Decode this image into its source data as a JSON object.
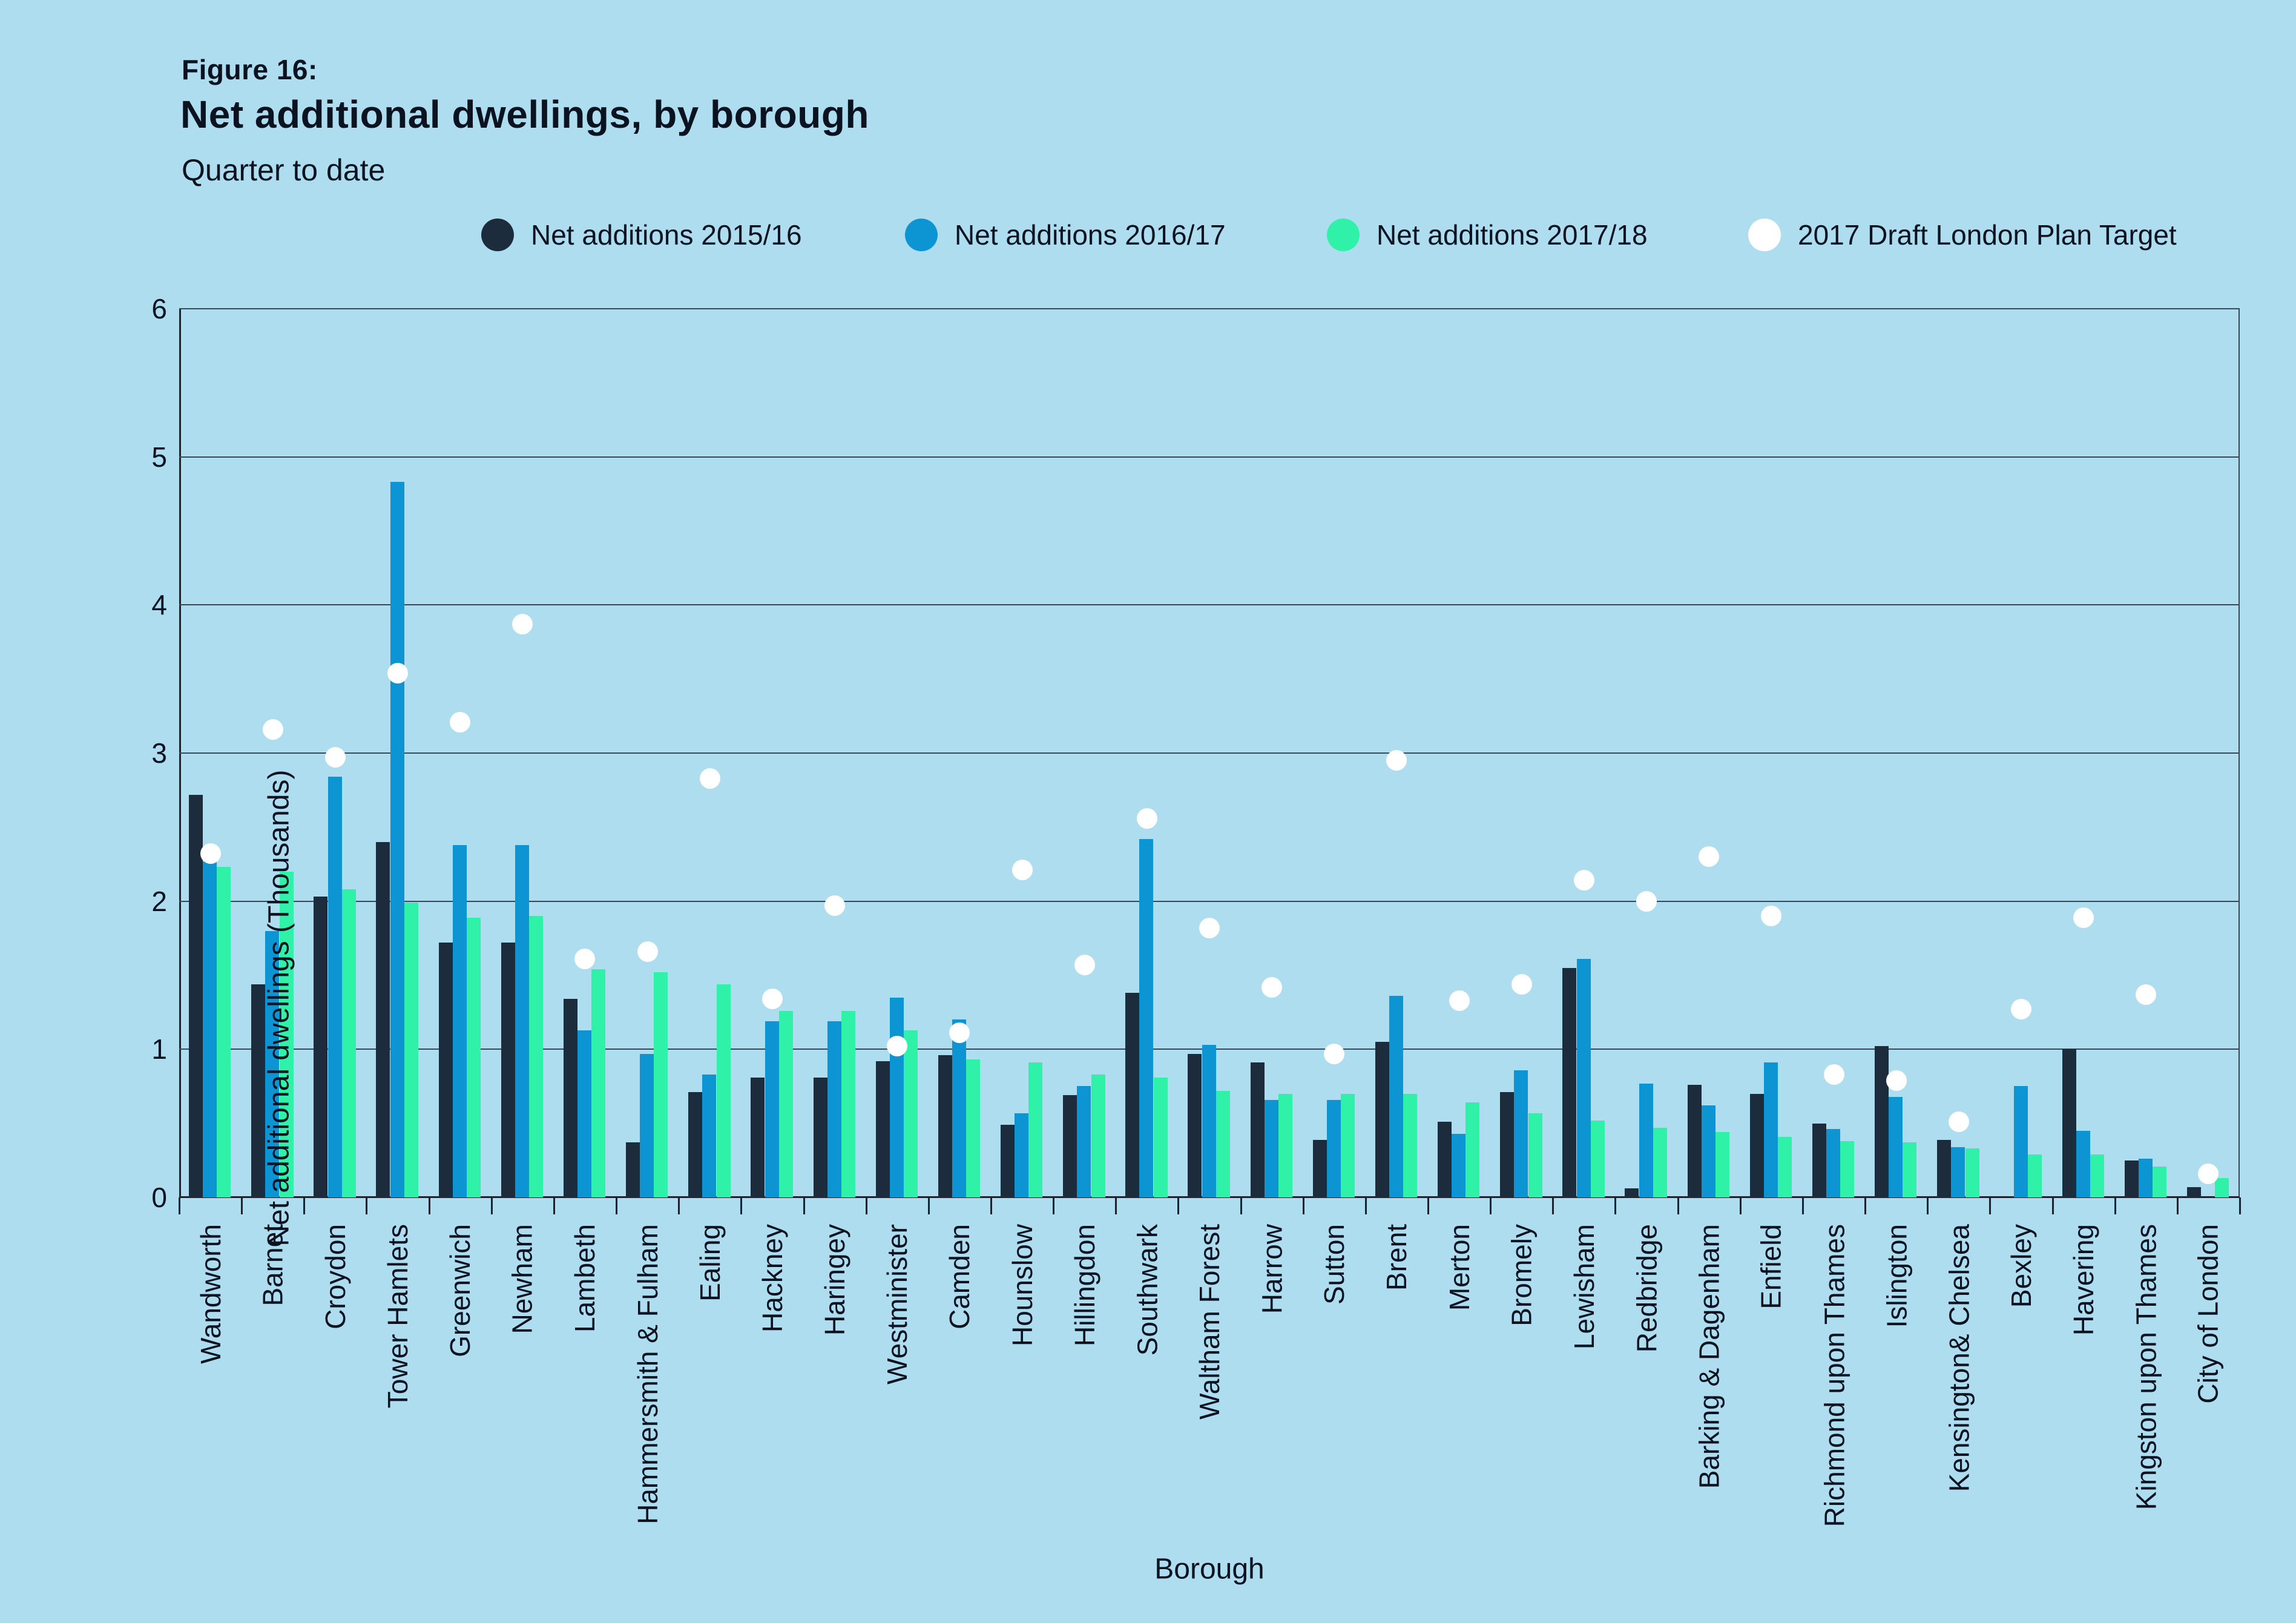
{
  "header": {
    "figure_label": "Figure 16:",
    "title": "Net additional dwellings, by borough",
    "subtitle": "Quarter to date"
  },
  "colors": {
    "background": "#aeddf0",
    "series_2015_16": "#1d2c3c",
    "series_2016_17": "#0d95d3",
    "series_2017_18": "#2ff1a7",
    "target": "#ffffff",
    "grid": "#3a4754",
    "axis": "#1a2430",
    "text": "#0b1220"
  },
  "chart_data": {
    "type": "bar",
    "title": "Net additional dwellings, by borough",
    "subtitle": "Quarter to date",
    "xlabel": "Borough",
    "ylabel": "Net additional dwellings (Thousands)",
    "ylim": [
      0,
      6
    ],
    "yticks": [
      0,
      1,
      2,
      3,
      4,
      5,
      6
    ],
    "grid": true,
    "legend_position": "top",
    "categories": [
      "Wandworth",
      "Barnet",
      "Croydon",
      "Tower Hamlets",
      "Greenwich",
      "Newham",
      "Lambeth",
      "Hammersmith & Fulham",
      "Ealing",
      "Hackney",
      "Haringey",
      "Westminister",
      "Camden",
      "Hounslow",
      "Hillingdon",
      "Southwark",
      "Waltham Forest",
      "Harrow",
      "Sutton",
      "Brent",
      "Merton",
      "Bromely",
      "Lewisham",
      "Redbridge",
      "Barking & Dagenham",
      "Enfield",
      "Richmond upon Thames",
      "Islington",
      "Kensington& Chelsea",
      "Bexley",
      "Havering",
      "Kingston upon Thames",
      "City of London"
    ],
    "series": [
      {
        "name": "Net additions 2015/16",
        "kind": "bar",
        "color": "#1d2c3c",
        "values": [
          2.72,
          1.44,
          2.03,
          2.4,
          1.72,
          1.72,
          1.34,
          0.37,
          0.71,
          0.81,
          0.81,
          0.92,
          0.96,
          0.49,
          0.69,
          1.38,
          0.97,
          0.91,
          0.39,
          1.05,
          0.51,
          0.71,
          1.55,
          0.06,
          0.76,
          0.7,
          0.5,
          1.02,
          0.39,
          null,
          1.0,
          0.25,
          0.07
        ]
      },
      {
        "name": "Net additions 2016/17",
        "kind": "bar",
        "color": "#0d95d3",
        "values": [
          2.27,
          1.8,
          2.84,
          4.83,
          2.38,
          2.38,
          1.13,
          0.97,
          0.83,
          1.19,
          1.19,
          1.35,
          1.2,
          0.57,
          0.75,
          2.42,
          1.03,
          0.66,
          0.66,
          1.36,
          0.43,
          0.86,
          1.61,
          0.77,
          0.62,
          0.91,
          0.46,
          0.68,
          0.34,
          0.75,
          0.45,
          0.26,
          null
        ]
      },
      {
        "name": "Net additions 2017/18",
        "kind": "bar",
        "color": "#2ff1a7",
        "values": [
          2.23,
          2.2,
          2.08,
          1.99,
          1.89,
          1.9,
          1.54,
          1.52,
          1.44,
          1.26,
          1.26,
          1.13,
          0.93,
          0.91,
          0.83,
          0.81,
          0.72,
          0.7,
          0.7,
          0.7,
          0.64,
          0.57,
          0.52,
          0.47,
          0.44,
          0.41,
          0.38,
          0.37,
          0.33,
          0.29,
          0.29,
          0.21,
          0.13
        ]
      },
      {
        "name": "2017 Draft London Plan Target",
        "kind": "point",
        "color": "#ffffff",
        "values": [
          2.32,
          3.16,
          2.97,
          3.54,
          3.21,
          3.87,
          1.61,
          1.66,
          2.83,
          1.34,
          1.97,
          1.02,
          1.11,
          2.21,
          1.57,
          2.56,
          1.82,
          1.42,
          0.97,
          2.95,
          1.33,
          1.44,
          2.14,
          2.0,
          2.3,
          1.9,
          0.83,
          0.79,
          0.51,
          1.27,
          1.89,
          1.37,
          0.16
        ]
      }
    ]
  }
}
